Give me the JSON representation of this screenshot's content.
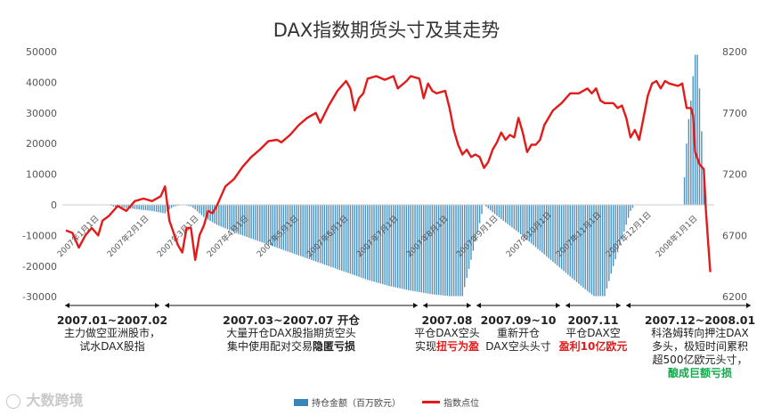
{
  "chart_data": {
    "type": "bar+line",
    "title": "DAX指数期货头寸及其走势",
    "y_left": {
      "ticks": [
        50000,
        40000,
        30000,
        20000,
        10000,
        0,
        -10000,
        -20000,
        -30000
      ],
      "ylim": [
        -30000,
        50000
      ]
    },
    "y_right": {
      "ticks": [
        8200,
        7700,
        7200,
        6700,
        6200
      ],
      "ylim": [
        6200,
        8200
      ]
    },
    "x_ticks": [
      "2007年1月1日",
      "2007年2月1日",
      "2007年3月1日",
      "2007年4月1日",
      "2007年5月1日",
      "2007年6月1日",
      "2007年7月1日",
      "2007年8月1日",
      "2007年9月1日",
      "2007年10月1日",
      "2007年11月1日",
      "2007年12月1日",
      "2008年1月1日"
    ],
    "series": [
      {
        "name": "持仓金额（百万欧元）",
        "type": "bar",
        "color": "#3a86b8",
        "points": [
          [
            0,
            0
          ],
          [
            20,
            0
          ],
          [
            22,
            -600
          ],
          [
            30,
            -1200
          ],
          [
            40,
            -2000
          ],
          [
            46,
            -2800
          ],
          [
            48,
            -1500
          ],
          [
            50,
            -600
          ],
          [
            54,
            0
          ],
          [
            58,
            -500
          ],
          [
            60,
            -1500
          ],
          [
            64,
            -4000
          ],
          [
            70,
            -6500
          ],
          [
            80,
            -9500
          ],
          [
            90,
            -12000
          ],
          [
            100,
            -14500
          ],
          [
            110,
            -17000
          ],
          [
            120,
            -19500
          ],
          [
            130,
            -22000
          ],
          [
            140,
            -24500
          ],
          [
            150,
            -26500
          ],
          [
            160,
            -28000
          ],
          [
            170,
            -29200
          ],
          [
            178,
            -29800
          ],
          [
            184,
            -29800
          ],
          [
            189,
            -15000
          ],
          [
            194,
            0
          ],
          [
            199,
            -3000
          ],
          [
            210,
            -9000
          ],
          [
            220,
            -15000
          ],
          [
            230,
            -21000
          ],
          [
            240,
            -27000
          ],
          [
            245,
            -29800
          ],
          [
            250,
            -29800
          ],
          [
            254,
            -20000
          ],
          [
            258,
            -11000
          ],
          [
            262,
            -2000
          ],
          [
            264,
            0
          ],
          [
            286,
            0
          ],
          [
            287,
            9000
          ],
          [
            288,
            20000
          ],
          [
            289,
            28000
          ],
          [
            290,
            34000
          ],
          [
            291,
            42000
          ],
          [
            292,
            49000
          ],
          [
            293,
            49000
          ],
          [
            294,
            38000
          ],
          [
            295,
            24000
          ],
          [
            296,
            10000
          ],
          [
            297,
            0
          ]
        ]
      },
      {
        "name": "指数点位",
        "type": "line",
        "color": "#e31a1a",
        "points": [
          [
            0,
            6740
          ],
          [
            3,
            6720
          ],
          [
            6,
            6600
          ],
          [
            9,
            6700
          ],
          [
            12,
            6760
          ],
          [
            15,
            6700
          ],
          [
            17,
            6820
          ],
          [
            20,
            6860
          ],
          [
            24,
            6940
          ],
          [
            28,
            6900
          ],
          [
            32,
            6980
          ],
          [
            36,
            7000
          ],
          [
            40,
            6980
          ],
          [
            44,
            7020
          ],
          [
            46,
            7100
          ],
          [
            48,
            6820
          ],
          [
            50,
            6720
          ],
          [
            52,
            6620
          ],
          [
            54,
            6560
          ],
          [
            56,
            6760
          ],
          [
            58,
            6760
          ],
          [
            60,
            6500
          ],
          [
            62,
            6700
          ],
          [
            64,
            6780
          ],
          [
            66,
            6900
          ],
          [
            68,
            6880
          ],
          [
            70,
            6940
          ],
          [
            72,
            7020
          ],
          [
            74,
            7100
          ],
          [
            78,
            7160
          ],
          [
            82,
            7260
          ],
          [
            86,
            7340
          ],
          [
            90,
            7400
          ],
          [
            94,
            7470
          ],
          [
            98,
            7480
          ],
          [
            100,
            7460
          ],
          [
            104,
            7520
          ],
          [
            108,
            7600
          ],
          [
            112,
            7660
          ],
          [
            116,
            7700
          ],
          [
            118,
            7620
          ],
          [
            122,
            7760
          ],
          [
            126,
            7880
          ],
          [
            130,
            7960
          ],
          [
            132,
            7900
          ],
          [
            134,
            7720
          ],
          [
            136,
            7820
          ],
          [
            138,
            7860
          ],
          [
            140,
            7980
          ],
          [
            144,
            8000
          ],
          [
            148,
            7970
          ],
          [
            152,
            8000
          ],
          [
            154,
            7900
          ],
          [
            158,
            7960
          ],
          [
            160,
            8000
          ],
          [
            164,
            7980
          ],
          [
            166,
            7820
          ],
          [
            168,
            7940
          ],
          [
            170,
            7880
          ],
          [
            172,
            7860
          ],
          [
            176,
            7880
          ],
          [
            178,
            7740
          ],
          [
            180,
            7560
          ],
          [
            182,
            7440
          ],
          [
            184,
            7360
          ],
          [
            186,
            7400
          ],
          [
            188,
            7340
          ],
          [
            190,
            7360
          ],
          [
            192,
            7340
          ],
          [
            194,
            7250
          ],
          [
            196,
            7300
          ],
          [
            198,
            7400
          ],
          [
            200,
            7460
          ],
          [
            202,
            7540
          ],
          [
            204,
            7480
          ],
          [
            206,
            7520
          ],
          [
            208,
            7500
          ],
          [
            210,
            7660
          ],
          [
            212,
            7540
          ],
          [
            214,
            7380
          ],
          [
            216,
            7440
          ],
          [
            218,
            7440
          ],
          [
            220,
            7480
          ],
          [
            222,
            7600
          ],
          [
            226,
            7720
          ],
          [
            230,
            7780
          ],
          [
            234,
            7860
          ],
          [
            238,
            7860
          ],
          [
            242,
            7900
          ],
          [
            244,
            7860
          ],
          [
            246,
            7900
          ],
          [
            248,
            7800
          ],
          [
            250,
            7780
          ],
          [
            254,
            7780
          ],
          [
            256,
            7740
          ],
          [
            258,
            7760
          ],
          [
            260,
            7660
          ],
          [
            262,
            7500
          ],
          [
            264,
            7560
          ],
          [
            266,
            7480
          ],
          [
            268,
            7660
          ],
          [
            270,
            7840
          ],
          [
            272,
            7940
          ],
          [
            274,
            7960
          ],
          [
            276,
            7900
          ],
          [
            278,
            7960
          ],
          [
            280,
            7940
          ],
          [
            284,
            7920
          ],
          [
            286,
            7940
          ],
          [
            288,
            7740
          ],
          [
            290,
            7740
          ],
          [
            291,
            7680
          ],
          [
            292,
            7380
          ],
          [
            294,
            7280
          ],
          [
            296,
            7240
          ],
          [
            297,
            6900
          ],
          [
            298,
            6640
          ],
          [
            299,
            6400
          ]
        ]
      }
    ],
    "annotations": [
      {
        "range": "2007.01~2007.02",
        "lines": [
          [
            {
              "t": "主力做空亚洲股市，"
            }
          ],
          [
            {
              "t": "试水DAX股指"
            }
          ]
        ]
      },
      {
        "range": "2007.03~2007.07 开仓",
        "lines": [
          [
            {
              "t": "大量开仓DAX股指期货空头"
            }
          ],
          [
            {
              "t": "集中使用配对交易"
            },
            {
              "t": "隐匿亏损",
              "s": "b"
            }
          ]
        ]
      },
      {
        "range": "2007.08",
        "lines": [
          [
            {
              "t": "平仓DAX空头"
            }
          ],
          [
            {
              "t": "实现"
            },
            {
              "t": "扭亏为盈",
              "s": "red"
            }
          ]
        ]
      },
      {
        "range": "2007.09~10",
        "lines": [
          [
            {
              "t": "重新开仓"
            }
          ],
          [
            {
              "t": "DAX空头头寸"
            }
          ]
        ]
      },
      {
        "range": "2007.11",
        "lines": [
          [
            {
              "t": "平仓DAX空"
            }
          ],
          [
            {
              "t": "盈利10亿欧元",
              "s": "red"
            }
          ]
        ]
      },
      {
        "range": "2007.12~2008.01",
        "lines": [
          [
            {
              "t": "科洛姆转向押注DAX"
            }
          ],
          [
            {
              "t": "多头，极短时间累积"
            }
          ],
          [
            {
              "t": "超500亿欧元头寸，"
            }
          ],
          [
            {
              "t": "酿成巨额亏损",
              "s": "green"
            }
          ]
        ]
      }
    ]
  },
  "legend": {
    "bar_label": "持仓金额（百万欧元）",
    "line_label": "指数点位"
  },
  "watermark": "大数跨境"
}
